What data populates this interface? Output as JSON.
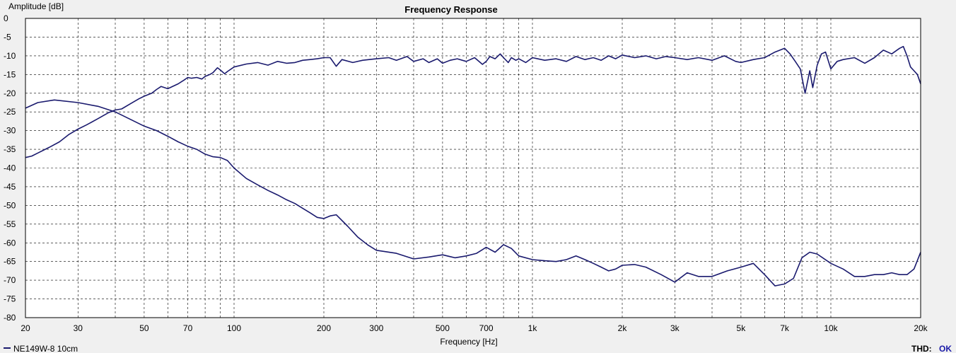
{
  "colors": {
    "background": "#f0f0f0",
    "plot_background": "#ffffff",
    "grid": "#000000",
    "series": "#1a1a6e",
    "thd_ok": "#1a1aa8"
  },
  "status": {
    "thd_label": "THD:",
    "thd_value": "OK"
  },
  "chart_data": {
    "type": "line",
    "title": "Frequency Response",
    "xlabel": "Frequency [Hz]",
    "ylabel": "Amplitude [dB]",
    "x_scale": "log",
    "xlim": [
      20,
      20000
    ],
    "ylim": [
      -80,
      0
    ],
    "grid": true,
    "legend_position": "bottom-left",
    "x_ticks": [
      {
        "value": 20,
        "label": "20"
      },
      {
        "value": 30,
        "label": "30"
      },
      {
        "value": 50,
        "label": "50"
      },
      {
        "value": 70,
        "label": "70"
      },
      {
        "value": 100,
        "label": "100"
      },
      {
        "value": 200,
        "label": "200"
      },
      {
        "value": 300,
        "label": "300"
      },
      {
        "value": 500,
        "label": "500"
      },
      {
        "value": 700,
        "label": "700"
      },
      {
        "value": 1000,
        "label": "1k"
      },
      {
        "value": 2000,
        "label": "2k"
      },
      {
        "value": 3000,
        "label": "3k"
      },
      {
        "value": 5000,
        "label": "5k"
      },
      {
        "value": 7000,
        "label": "7k"
      },
      {
        "value": 10000,
        "label": "10k"
      },
      {
        "value": 20000,
        "label": "20k"
      }
    ],
    "y_ticks": [
      {
        "value": 0,
        "label": "0"
      },
      {
        "value": -5,
        "label": "-5"
      },
      {
        "value": -10,
        "label": "-10"
      },
      {
        "value": -15,
        "label": "-15"
      },
      {
        "value": -20,
        "label": "-20"
      },
      {
        "value": -25,
        "label": "-25"
      },
      {
        "value": -30,
        "label": "-30"
      },
      {
        "value": -35,
        "label": "-35"
      },
      {
        "value": -40,
        "label": "-40"
      },
      {
        "value": -45,
        "label": "-45"
      },
      {
        "value": -50,
        "label": "-50"
      },
      {
        "value": -55,
        "label": "-55"
      },
      {
        "value": -60,
        "label": "-60"
      },
      {
        "value": -65,
        "label": "-65"
      },
      {
        "value": -70,
        "label": "-70"
      },
      {
        "value": -75,
        "label": "-75"
      },
      {
        "value": -80,
        "label": "-80"
      }
    ],
    "legend": [
      {
        "name": "NE149W-8 10cm"
      }
    ],
    "series": [
      {
        "name": "NE149W-8 10cm",
        "x": [
          20,
          21,
          22,
          24,
          26,
          28,
          30,
          32,
          35,
          38,
          40,
          42,
          45,
          48,
          50,
          53,
          55,
          57,
          60,
          65,
          68,
          70,
          72,
          75,
          78,
          80,
          83,
          85,
          88,
          90,
          93,
          95,
          100,
          110,
          120,
          130,
          140,
          150,
          160,
          170,
          180,
          190,
          200,
          210,
          220,
          230,
          250,
          270,
          300,
          330,
          350,
          380,
          400,
          430,
          450,
          480,
          500,
          530,
          560,
          600,
          640,
          680,
          700,
          720,
          750,
          780,
          800,
          830,
          850,
          880,
          900,
          950,
          1000,
          1100,
          1200,
          1300,
          1400,
          1500,
          1600,
          1700,
          1800,
          1900,
          2000,
          2200,
          2400,
          2600,
          2800,
          3000,
          3300,
          3600,
          4000,
          4400,
          4800,
          5000,
          5500,
          6000,
          6500,
          7000,
          7300,
          7600,
          7900,
          8200,
          8500,
          8700,
          9000,
          9300,
          9600,
          10000,
          10500,
          11000,
          12000,
          13000,
          14000,
          15000,
          16000,
          17000,
          17500,
          18000,
          18500,
          19000,
          19500,
          20000
        ],
        "y": [
          -37.2,
          -36.8,
          -36.0,
          -34.5,
          -33.0,
          -31.0,
          -29.6,
          -28.5,
          -26.8,
          -25.2,
          -24.5,
          -24.2,
          -22.8,
          -21.5,
          -20.8,
          -20.0,
          -19.0,
          -18.2,
          -18.8,
          -17.5,
          -16.5,
          -15.8,
          -16.0,
          -15.8,
          -16.2,
          -15.5,
          -15.0,
          -14.5,
          -13.2,
          -13.8,
          -14.8,
          -14.2,
          -13.0,
          -12.2,
          -11.8,
          -12.5,
          -11.5,
          -12.0,
          -11.8,
          -11.2,
          -11.0,
          -10.8,
          -10.5,
          -10.5,
          -12.8,
          -11.0,
          -11.8,
          -11.2,
          -10.8,
          -10.5,
          -11.2,
          -10.2,
          -11.5,
          -10.8,
          -11.8,
          -10.8,
          -12.0,
          -11.2,
          -10.8,
          -11.5,
          -10.5,
          -12.3,
          -11.5,
          -10.2,
          -10.8,
          -9.5,
          -10.5,
          -11.8,
          -10.5,
          -11.2,
          -10.8,
          -11.8,
          -10.5,
          -11.2,
          -10.8,
          -11.5,
          -10.2,
          -11.0,
          -10.5,
          -11.2,
          -10.0,
          -10.8,
          -9.8,
          -10.5,
          -10.0,
          -10.8,
          -10.2,
          -10.5,
          -11.0,
          -10.5,
          -11.2,
          -10.0,
          -11.5,
          -11.8,
          -11.0,
          -10.5,
          -9.0,
          -8.0,
          -9.5,
          -11.5,
          -13.5,
          -20.0,
          -14.0,
          -18.5,
          -12.5,
          -9.5,
          -9.0,
          -13.5,
          -11.5,
          -11.0,
          -10.5,
          -12.0,
          -10.5,
          -8.5,
          -9.5,
          -8.0,
          -7.5,
          -10.0,
          -13.0,
          -14.0,
          -15.0,
          -17.5
        ]
      },
      {
        "name": "",
        "x": [
          20,
          22,
          25,
          30,
          35,
          40,
          45,
          50,
          55,
          60,
          65,
          70,
          75,
          80,
          85,
          90,
          95,
          100,
          110,
          120,
          130,
          140,
          150,
          160,
          170,
          180,
          190,
          200,
          210,
          220,
          240,
          260,
          280,
          300,
          350,
          400,
          450,
          500,
          550,
          600,
          650,
          700,
          750,
          800,
          850,
          900,
          1000,
          1100,
          1200,
          1300,
          1400,
          1500,
          1600,
          1700,
          1800,
          1900,
          2000,
          2200,
          2400,
          2700,
          3000,
          3300,
          3600,
          4000,
          4500,
          5000,
          5500,
          6000,
          6500,
          7000,
          7500,
          8000,
          8500,
          9000,
          10000,
          11000,
          12000,
          13000,
          14000,
          15000,
          16000,
          17000,
          18000,
          19000,
          20000
        ],
        "y": [
          -24.0,
          -22.5,
          -21.8,
          -22.5,
          -23.5,
          -25.0,
          -27.0,
          -28.8,
          -30.0,
          -31.5,
          -33.0,
          -34.2,
          -35.0,
          -36.3,
          -37.0,
          -37.2,
          -38.0,
          -40.0,
          -42.8,
          -44.5,
          -46.0,
          -47.2,
          -48.5,
          -49.5,
          -50.8,
          -52.0,
          -53.2,
          -53.5,
          -52.8,
          -52.5,
          -55.5,
          -58.5,
          -60.5,
          -62.0,
          -62.8,
          -64.3,
          -63.8,
          -63.2,
          -64.0,
          -63.5,
          -62.8,
          -61.2,
          -62.5,
          -60.5,
          -61.5,
          -63.5,
          -64.5,
          -64.8,
          -65.0,
          -64.5,
          -63.5,
          -64.5,
          -65.5,
          -66.5,
          -67.5,
          -67.0,
          -66.0,
          -65.8,
          -66.5,
          -68.5,
          -70.5,
          -68.0,
          -69.0,
          -69.0,
          -67.5,
          -66.5,
          -65.5,
          -68.5,
          -71.5,
          -71.0,
          -69.5,
          -64.0,
          -62.5,
          -63.0,
          -65.5,
          -67.0,
          -69.0,
          -69.0,
          -68.5,
          -68.5,
          -68.0,
          -68.5,
          -68.5,
          -67.0,
          -62.5
        ]
      }
    ]
  }
}
